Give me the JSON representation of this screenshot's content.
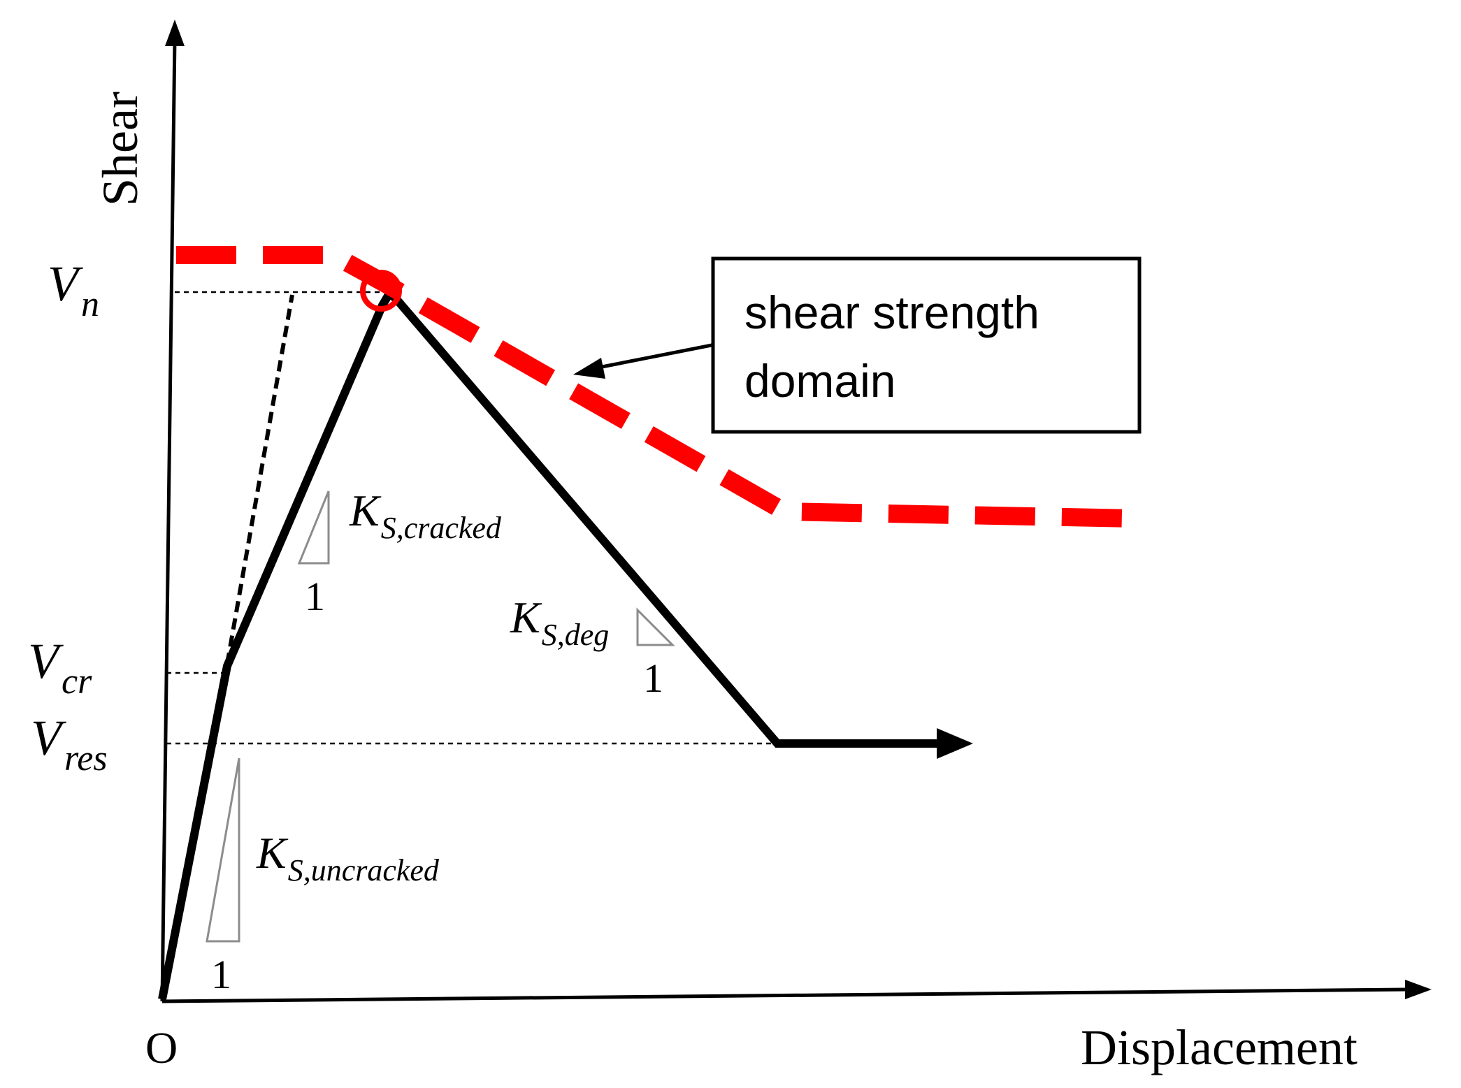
{
  "axes": {
    "y_label": "Shear",
    "x_label": "Displacement",
    "origin_label": "O"
  },
  "levels": {
    "vn": {
      "main": "V",
      "sub": "n"
    },
    "vcr": {
      "main": "V",
      "sub": "cr"
    },
    "vres": {
      "main": "V",
      "sub": "res"
    }
  },
  "slopes": {
    "uncracked": {
      "main": "K",
      "sub": "S,uncracked",
      "run": "1"
    },
    "cracked": {
      "main": "K",
      "sub": "S,cracked",
      "run": "1"
    },
    "degrading": {
      "main": "K",
      "sub": "S,deg",
      "run": "1"
    }
  },
  "callout": {
    "line1": "shear strength",
    "line2": "domain"
  },
  "colors": {
    "response": "#000000",
    "strength_domain": "#ff0000",
    "slope_triangle": "#8c8c8c"
  }
}
